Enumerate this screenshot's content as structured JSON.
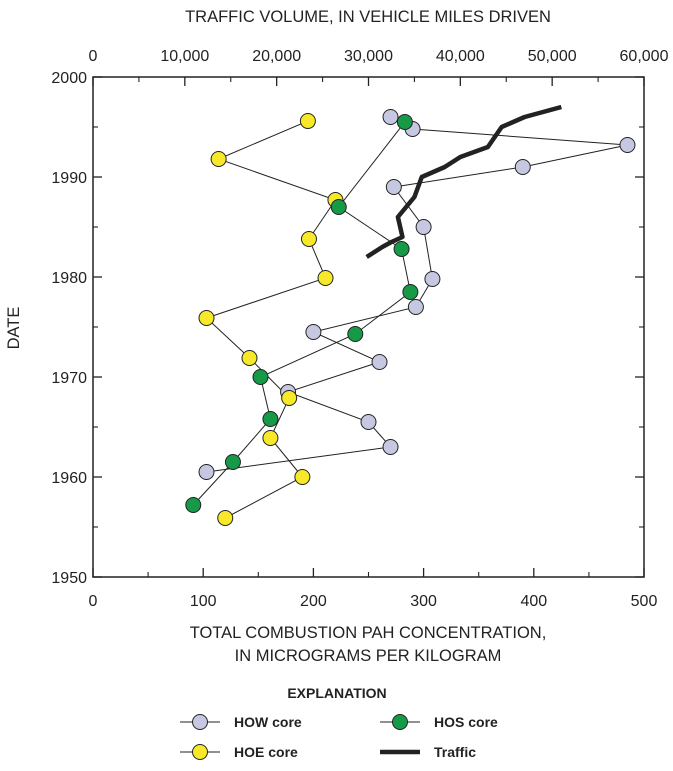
{
  "chart_data": {
    "type": "scatter",
    "xlabel_bottom": [
      "TOTAL COMBUSTION PAH CONCENTRATION,",
      "IN MICROGRAMS PER KILOGRAM"
    ],
    "xlabel_top": "TRAFFIC VOLUME, IN VEHICLE MILES DRIVEN",
    "ylabel": "DATE",
    "xlim": [
      0,
      500
    ],
    "x2lim": [
      0,
      60000
    ],
    "ylim": [
      1950,
      2000
    ],
    "x_ticks": [
      "0",
      "100",
      "200",
      "300",
      "400",
      "500"
    ],
    "x2_ticks": [
      "0",
      "10,000",
      "20,000",
      "30,000",
      "40,000",
      "50,000",
      "60,000"
    ],
    "y_ticks": [
      "1950",
      "1960",
      "1970",
      "1980",
      "1990",
      "2000"
    ],
    "grid": false,
    "legend": {
      "title": "EXPLANATION",
      "placement": "bottom"
    },
    "series": [
      {
        "name": "HOW core",
        "marker_color": "#c5c8e0",
        "points": [
          [
            270,
            1996
          ],
          [
            290,
            1994.8
          ],
          [
            485,
            1993.2
          ],
          [
            390,
            1991
          ],
          [
            273,
            1989
          ],
          [
            300,
            1985
          ],
          [
            308,
            1979.8
          ],
          [
            293,
            1977
          ],
          [
            200,
            1974.5
          ],
          [
            260,
            1971.5
          ],
          [
            177,
            1968.5
          ],
          [
            250,
            1965.5
          ],
          [
            270,
            1963
          ],
          [
            103,
            1960.5
          ]
        ]
      },
      {
        "name": "HOE core",
        "marker_color": "#f7e82a",
        "points": [
          [
            195,
            1995.6
          ],
          [
            114,
            1991.8
          ],
          [
            220,
            1987.7
          ],
          [
            196,
            1983.8
          ],
          [
            211,
            1979.9
          ],
          [
            103,
            1975.9
          ],
          [
            142,
            1971.9
          ],
          [
            178,
            1967.9
          ],
          [
            161,
            1963.9
          ],
          [
            190,
            1960
          ],
          [
            120,
            1955.9
          ]
        ]
      },
      {
        "name": "HOS core",
        "marker_color": "#169a48",
        "points": [
          [
            283,
            1995.5
          ],
          [
            223,
            1987
          ],
          [
            280,
            1982.8
          ],
          [
            288,
            1978.5
          ],
          [
            238,
            1974.3
          ],
          [
            152,
            1970
          ],
          [
            161,
            1965.8
          ],
          [
            127,
            1961.5
          ],
          [
            91,
            1957.2
          ]
        ]
      },
      {
        "name": "Traffic",
        "axis": "top",
        "line_color": "#222222",
        "points": [
          [
            29800,
            1982
          ],
          [
            31500,
            1983
          ],
          [
            32500,
            1983.5
          ],
          [
            33700,
            1984
          ],
          [
            33200,
            1986
          ],
          [
            35000,
            1988
          ],
          [
            35800,
            1990
          ],
          [
            38300,
            1991
          ],
          [
            40000,
            1992
          ],
          [
            43000,
            1993
          ],
          [
            44500,
            1995
          ],
          [
            47000,
            1996
          ],
          [
            51000,
            1997
          ]
        ]
      }
    ]
  }
}
